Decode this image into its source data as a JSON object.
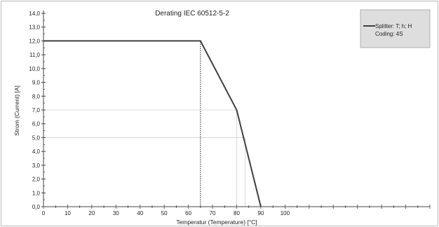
{
  "chart_data": {
    "type": "line",
    "title": "Derating IEC 60512-5-2",
    "xlabel": "Temperatur (Temperature) [°C]",
    "ylabel": "Strom (Current) [A]",
    "xlim": [
      0,
      160
    ],
    "ylim": [
      0,
      14
    ],
    "x_ticks": [
      0,
      10,
      20,
      30,
      40,
      50,
      60,
      70,
      80,
      90,
      100
    ],
    "x_tick_labels": [
      "0",
      "10",
      "20",
      "30",
      "40",
      "50",
      "60",
      "70",
      "80",
      "90",
      "100"
    ],
    "x_minor_step": 5,
    "y_ticks": [
      0,
      1,
      2,
      3,
      4,
      5,
      6,
      7,
      8,
      9,
      10,
      11,
      12,
      13,
      14
    ],
    "y_tick_labels": [
      "0,0",
      "1,0",
      "2,0",
      "3,0",
      "4,0",
      "5,0",
      "6,0",
      "7,0",
      "8,0",
      "9,0",
      "10,0",
      "11,0",
      "12,0",
      "13,0",
      "14,0"
    ],
    "y_minor_step": 0.5,
    "grid": false,
    "legend_position": "top-right",
    "series": [
      {
        "name": "Splitter: T; h; H",
        "coding": "Coding:  4S",
        "color": "#404040",
        "x": [
          0,
          65,
          80,
          90
        ],
        "y": [
          12,
          12,
          7,
          0
        ]
      }
    ],
    "guide_lines": [
      {
        "orientation": "vertical",
        "x": 65,
        "y_from": 0,
        "y_to": 12,
        "style": "dotted",
        "color": "#333333"
      },
      {
        "orientation": "horizontal",
        "y": 7,
        "x_from": 0,
        "x_to": 80,
        "style": "solid",
        "color": "#d0d0d0"
      },
      {
        "orientation": "horizontal",
        "y": 5,
        "x_from": 0,
        "x_to": 83.5,
        "style": "solid",
        "color": "#d0d0d0"
      },
      {
        "orientation": "vertical",
        "x": 80,
        "y_from": 0,
        "y_to": 7,
        "style": "solid",
        "color": "#d0d0d0"
      },
      {
        "orientation": "vertical",
        "x": 83.5,
        "y_from": 0,
        "y_to": 5,
        "style": "solid",
        "color": "#d0d0d0"
      }
    ],
    "legend_bg": "#dedede",
    "axis_color": "#444444"
  }
}
